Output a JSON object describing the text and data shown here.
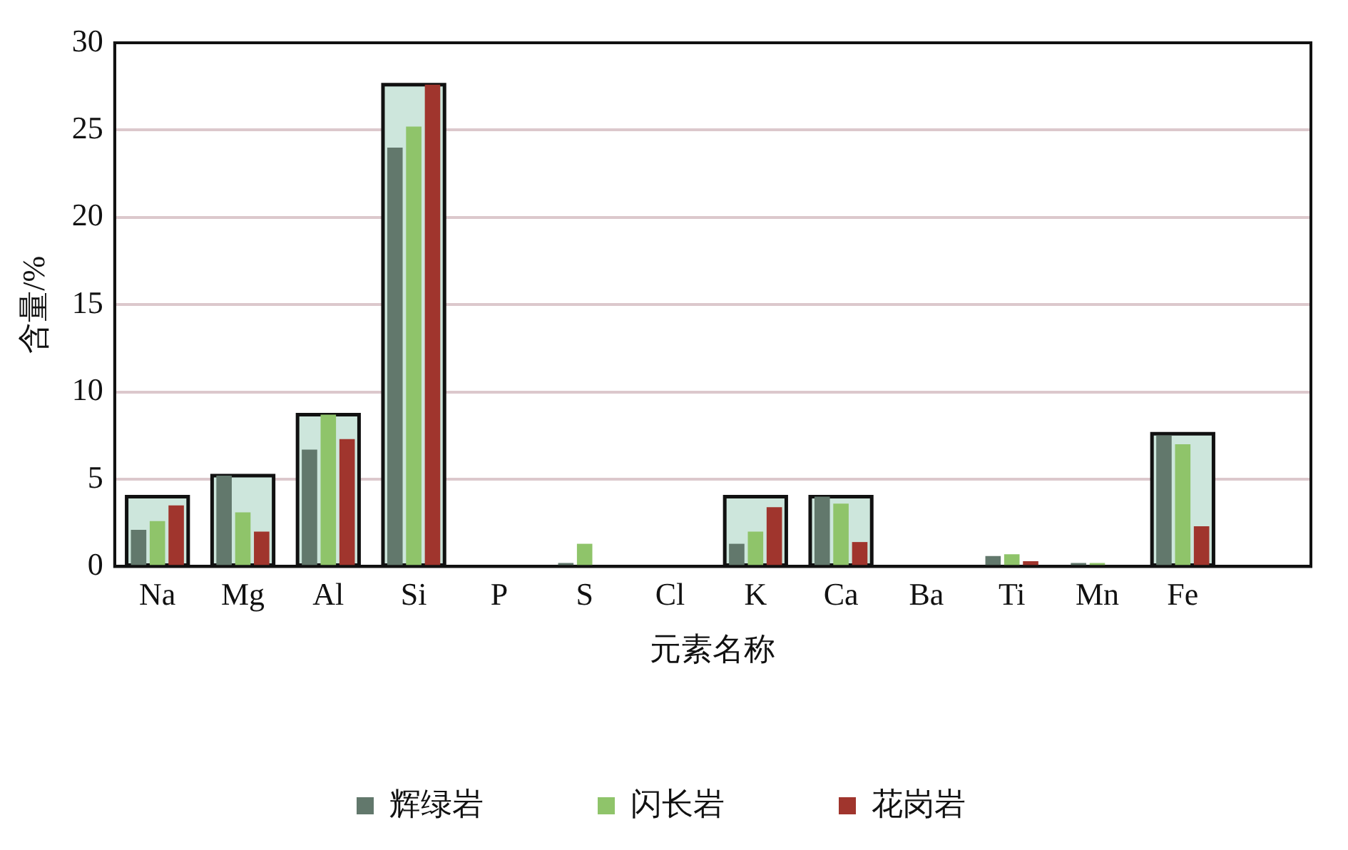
{
  "chart_data": {
    "type": "bar",
    "xlabel": "元素名称",
    "ylabel": "含量/%",
    "categories": [
      "Na",
      "Mg",
      "Al",
      "Si",
      "P",
      "S",
      "Cl",
      "K",
      "Ca",
      "Ba",
      "Ti",
      "Mn",
      "Fe",
      null
    ],
    "series": [
      {
        "name": "辉绿岩",
        "color": "#62786c",
        "values": [
          2.1,
          5.2,
          6.7,
          24.0,
          null,
          0.2,
          null,
          1.3,
          4.0,
          null,
          0.6,
          0.2,
          7.5,
          null
        ]
      },
      {
        "name": "闪长岩",
        "color": "#8fc46a",
        "values": [
          2.6,
          3.1,
          8.7,
          25.2,
          null,
          1.3,
          null,
          2.0,
          3.6,
          null,
          0.7,
          0.2,
          7.0,
          null
        ]
      },
      {
        "name": "花岗岩",
        "color": "#a0352d",
        "values": [
          3.5,
          2.0,
          7.3,
          27.6,
          null,
          null,
          null,
          3.4,
          1.4,
          null,
          0.3,
          null,
          2.3,
          null
        ]
      },
      {
        "color": "#cde6dc",
        "values": [
          4.0,
          5.2,
          8.7,
          27.6,
          null,
          null,
          null,
          4.0,
          4.0,
          null,
          null,
          null,
          7.6,
          null
        ]
      }
    ],
    "ylim": [
      0,
      30
    ],
    "yticks": [
      0,
      5,
      10,
      15,
      20,
      25,
      30
    ],
    "grid": "y",
    "legend": "bottom"
  }
}
